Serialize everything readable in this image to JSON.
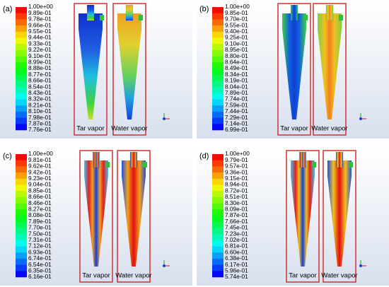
{
  "panels": [
    {
      "label": "(a)",
      "colorbar": [
        "1.00e+00",
        "9.89e-01",
        "9.78e-01",
        "9.66e-01",
        "9.55e-01",
        "9.44e-01",
        "9.33e-01",
        "9.22e-01",
        "9.10e-01",
        "8.99e-01",
        "8.88e-01",
        "8.77e-01",
        "8.66e-01",
        "8.54e-01",
        "8.43e-01",
        "8.32e-01",
        "8.21e-01",
        "8.10e-01",
        "7.98e-01",
        "7.87e-01",
        "7.76e-01"
      ],
      "boxes": [
        "Tar vapor",
        "Water vapor"
      ]
    },
    {
      "label": "(b)",
      "colorbar": [
        "1.00e+00",
        "9.85e-01",
        "9.70e-01",
        "9.55e-01",
        "9.40e-01",
        "9.25e-01",
        "9.10e-01",
        "8.95e-01",
        "8.80e-01",
        "8.64e-01",
        "8.49e-01",
        "8.34e-01",
        "8.19e-01",
        "8.04e-01",
        "7.89e-01",
        "7.74e-01",
        "7.59e-01",
        "7.44e-01",
        "7.29e-01",
        "7.14e-01",
        "6.99e-01"
      ],
      "boxes": [
        "Tar vapor",
        "Water vapor"
      ]
    },
    {
      "label": "(c)",
      "colorbar": [
        "1.00e+00",
        "9.81e-01",
        "9.62e-01",
        "9.42e-01",
        "9.23e-01",
        "9.04e-01",
        "8.85e-01",
        "8.66e-01",
        "8.46e-01",
        "8.27e-01",
        "8.08e-01",
        "7.89e-01",
        "7.70e-01",
        "7.50e-01",
        "7.31e-01",
        "7.12e-01",
        "6.93e-01",
        "6.74e-01",
        "6.54e-01",
        "6.35e-01",
        "6.16e-01"
      ],
      "boxes": [
        "Tar vapor",
        "Water vapor"
      ]
    },
    {
      "label": "(d)",
      "colorbar": [
        "1.00e+00",
        "9.79e-01",
        "9.57e-01",
        "9.36e-01",
        "9.15e-01",
        "8.94e-01",
        "8.72e-01",
        "8.51e-01",
        "8.30e-01",
        "8.09e-01",
        "7.87e-01",
        "7.66e-01",
        "7.45e-01",
        "7.23e-01",
        "7.02e-01",
        "6.81e-01",
        "6.60e-01",
        "6.38e-01",
        "6.17e-01",
        "5.96e-01",
        "5.74e-01"
      ],
      "boxes": [
        "Tar vapor",
        "Water vapor"
      ]
    }
  ]
}
